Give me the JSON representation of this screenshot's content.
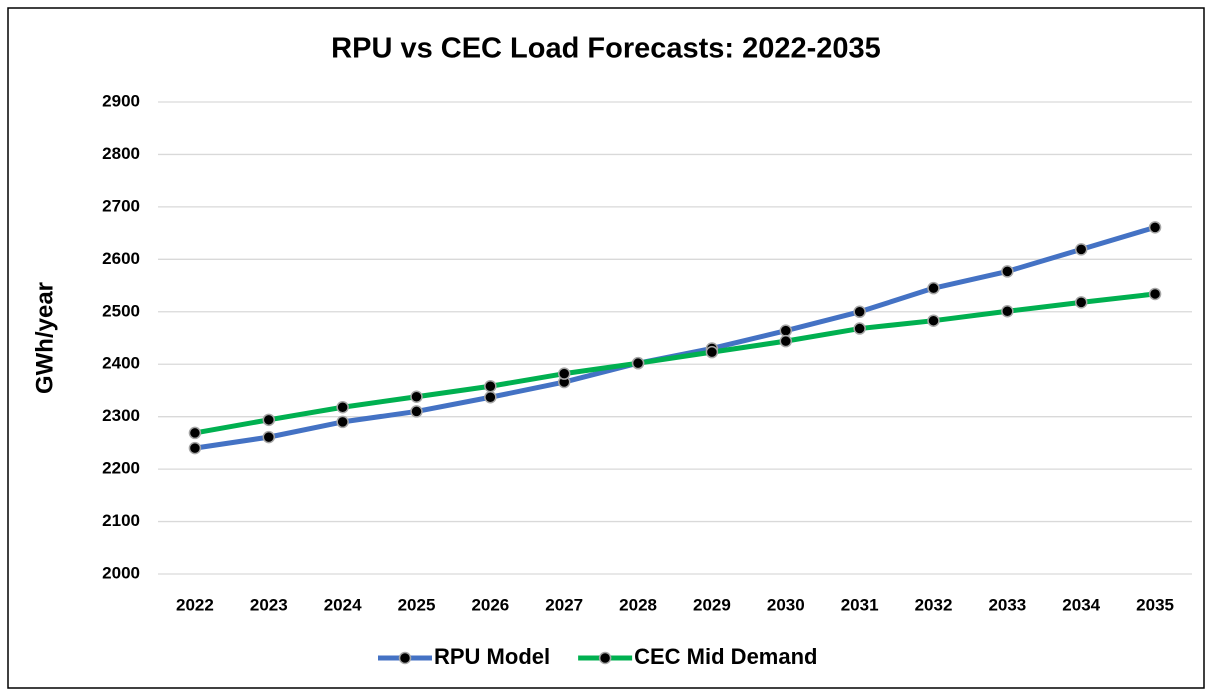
{
  "chart_data": {
    "type": "line",
    "title": "RPU vs CEC Load Forecasts: 2022-2035",
    "y_label": "GWh/year",
    "categories": [
      "2022",
      "2023",
      "2024",
      "2025",
      "2026",
      "2027",
      "2028",
      "2029",
      "2030",
      "2031",
      "2032",
      "2033",
      "2034",
      "2035"
    ],
    "series": [
      {
        "name": "RPU Model",
        "color": "#4472c4",
        "values": [
          2240,
          2261,
          2290,
          2310,
          2337,
          2366,
          2402,
          2430,
          2464,
          2500,
          2545,
          2577,
          2619,
          2661
        ]
      },
      {
        "name": "CEC Mid Demand",
        "color": "#00b050",
        "values": [
          2269,
          2294,
          2318,
          2338,
          2358,
          2382,
          2402,
          2423,
          2444,
          2468,
          2483,
          2501,
          2518,
          2534
        ]
      }
    ],
    "ylim": [
      2000,
      2900
    ],
    "yticks": [
      2000,
      2100,
      2200,
      2300,
      2400,
      2500,
      2600,
      2700,
      2800,
      2900
    ],
    "grid": true,
    "legend": "bottom"
  }
}
